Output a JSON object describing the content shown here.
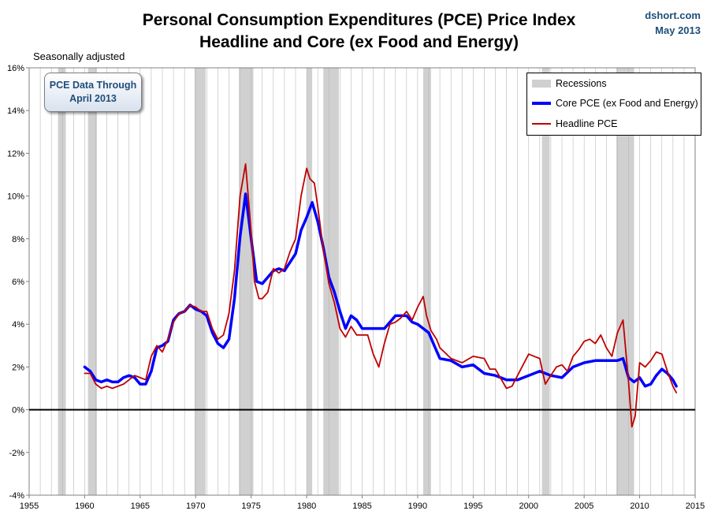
{
  "header": {
    "title_line1": "Personal Consumption Expenditures (PCE) Price Index",
    "title_line2": "Headline and Core (ex Food and Energy)",
    "source": "dshort.com",
    "date": "May 2013"
  },
  "note": "Seasonally adjusted",
  "data_box": {
    "line1": "PCE Data Through",
    "line2": "April 2013"
  },
  "legend": {
    "recessions": "Recessions",
    "core": "Core PCE (ex Food and Energy)",
    "headline": "Headline PCE"
  },
  "colors": {
    "core": "#0000ff",
    "headline": "#c00000",
    "recession": "#d0d0d0",
    "title": "#000000",
    "brand": "#1f4e79"
  },
  "chart_data": {
    "type": "line",
    "title": "Personal Consumption Expenditures (PCE) Price Index - Headline and Core (ex Food and Energy)",
    "xlabel": "",
    "ylabel": "",
    "xlim": [
      1955,
      2015
    ],
    "ylim": [
      -4,
      16
    ],
    "x_ticks": [
      1955,
      1960,
      1965,
      1970,
      1975,
      1980,
      1985,
      1990,
      1995,
      2000,
      2005,
      2010,
      2015
    ],
    "y_ticks": [
      -4,
      -2,
      0,
      2,
      4,
      6,
      8,
      10,
      12,
      14,
      16
    ],
    "y_tick_labels": [
      "-4%",
      "-2%",
      "0%",
      "2%",
      "4%",
      "6%",
      "8%",
      "10%",
      "12%",
      "14%",
      "16%"
    ],
    "grid": "vertical",
    "zero_line": true,
    "recessions": [
      [
        1957.6,
        1958.3
      ],
      [
        1960.3,
        1961.1
      ],
      [
        1969.9,
        1970.9
      ],
      [
        1973.9,
        1975.2
      ],
      [
        1980.0,
        1980.5
      ],
      [
        1981.5,
        1982.9
      ],
      [
        1990.5,
        1991.2
      ],
      [
        2001.2,
        2001.9
      ],
      [
        2007.9,
        2009.5
      ]
    ],
    "series": [
      {
        "name": "Core PCE (ex Food and Energy)",
        "x": [
          1960.0,
          1960.5,
          1961.0,
          1961.5,
          1962.0,
          1962.5,
          1963.0,
          1963.5,
          1964.0,
          1964.5,
          1965.0,
          1965.5,
          1966.0,
          1966.5,
          1967.0,
          1967.5,
          1968.0,
          1968.5,
          1969.0,
          1969.5,
          1970.0,
          1970.5,
          1971.0,
          1971.5,
          1972.0,
          1972.5,
          1973.0,
          1973.5,
          1974.0,
          1974.5,
          1975.0,
          1975.5,
          1976.0,
          1976.5,
          1977.0,
          1977.5,
          1978.0,
          1978.5,
          1979.0,
          1979.5,
          1980.0,
          1980.5,
          1981.0,
          1981.5,
          1982.0,
          1982.5,
          1983.0,
          1983.5,
          1984.0,
          1984.5,
          1985.0,
          1986.0,
          1987.0,
          1988.0,
          1989.0,
          1989.5,
          1990.0,
          1990.5,
          1991.0,
          1991.5,
          1992.0,
          1993.0,
          1994.0,
          1995.0,
          1996.0,
          1997.0,
          1998.0,
          1999.0,
          2000.0,
          2001.0,
          2002.0,
          2003.0,
          2004.0,
          2005.0,
          2006.0,
          2007.0,
          2008.0,
          2008.5,
          2009.0,
          2009.5,
          2010.0,
          2010.5,
          2011.0,
          2011.5,
          2012.0,
          2012.5,
          2013.0,
          2013.3
        ],
        "values": [
          2.0,
          1.8,
          1.4,
          1.3,
          1.4,
          1.3,
          1.3,
          1.5,
          1.6,
          1.5,
          1.2,
          1.2,
          1.8,
          2.9,
          3.0,
          3.2,
          4.2,
          4.5,
          4.6,
          4.9,
          4.7,
          4.6,
          4.4,
          3.6,
          3.1,
          2.9,
          3.3,
          5.2,
          8.1,
          10.1,
          8.0,
          6.0,
          5.9,
          6.2,
          6.5,
          6.6,
          6.5,
          6.9,
          7.3,
          8.4,
          9.0,
          9.7,
          8.8,
          7.6,
          6.2,
          5.5,
          4.6,
          3.8,
          4.4,
          4.2,
          3.8,
          3.8,
          3.8,
          4.4,
          4.4,
          4.1,
          4.0,
          3.8,
          3.6,
          3.0,
          2.4,
          2.3,
          2.0,
          2.1,
          1.7,
          1.6,
          1.4,
          1.4,
          1.6,
          1.8,
          1.6,
          1.5,
          2.0,
          2.2,
          2.3,
          2.3,
          2.3,
          2.4,
          1.5,
          1.3,
          1.5,
          1.1,
          1.2,
          1.6,
          1.9,
          1.7,
          1.4,
          1.1
        ]
      },
      {
        "name": "Headline PCE",
        "x": [
          1960.0,
          1960.5,
          1961.0,
          1961.5,
          1962.0,
          1962.5,
          1963.0,
          1963.5,
          1964.0,
          1964.5,
          1965.0,
          1965.5,
          1966.0,
          1966.5,
          1967.0,
          1967.5,
          1968.0,
          1968.5,
          1969.0,
          1969.5,
          1970.0,
          1970.5,
          1971.0,
          1971.5,
          1972.0,
          1972.5,
          1973.0,
          1973.5,
          1974.0,
          1974.5,
          1975.0,
          1975.3,
          1975.7,
          1976.0,
          1976.5,
          1977.0,
          1977.5,
          1978.0,
          1978.5,
          1979.0,
          1979.5,
          1980.0,
          1980.3,
          1980.7,
          1981.0,
          1981.5,
          1982.0,
          1982.5,
          1983.0,
          1983.5,
          1984.0,
          1984.5,
          1985.0,
          1985.5,
          1986.0,
          1986.5,
          1987.0,
          1987.5,
          1988.0,
          1988.5,
          1989.0,
          1989.5,
          1990.0,
          1990.5,
          1990.8,
          1991.2,
          1991.7,
          1992.0,
          1993.0,
          1994.0,
          1995.0,
          1996.0,
          1996.5,
          1997.0,
          1998.0,
          1998.5,
          1999.0,
          2000.0,
          2000.5,
          2001.0,
          2001.5,
          2002.0,
          2002.5,
          2003.0,
          2003.5,
          2004.0,
          2004.5,
          2005.0,
          2005.5,
          2006.0,
          2006.5,
          2007.0,
          2007.5,
          2008.0,
          2008.5,
          2009.0,
          2009.3,
          2009.6,
          2010.0,
          2010.5,
          2011.0,
          2011.5,
          2012.0,
          2012.5,
          2013.0,
          2013.3
        ],
        "values": [
          1.7,
          1.7,
          1.2,
          1.0,
          1.1,
          1.0,
          1.1,
          1.2,
          1.4,
          1.6,
          1.5,
          1.4,
          2.5,
          3.0,
          2.7,
          3.3,
          4.1,
          4.5,
          4.6,
          4.9,
          4.8,
          4.6,
          4.6,
          3.8,
          3.3,
          3.5,
          4.5,
          6.5,
          10.0,
          11.5,
          8.3,
          6.0,
          5.2,
          5.2,
          5.5,
          6.6,
          6.4,
          6.6,
          7.4,
          8.0,
          10.0,
          11.3,
          10.8,
          10.6,
          9.5,
          7.5,
          5.9,
          5.0,
          3.8,
          3.4,
          3.9,
          3.5,
          3.5,
          3.5,
          2.6,
          2.0,
          3.1,
          4.0,
          4.1,
          4.3,
          4.6,
          4.2,
          4.8,
          5.3,
          4.4,
          3.7,
          3.3,
          2.9,
          2.4,
          2.2,
          2.5,
          2.4,
          1.9,
          1.9,
          1.0,
          1.1,
          1.6,
          2.6,
          2.5,
          2.4,
          1.2,
          1.6,
          2.0,
          2.1,
          1.8,
          2.5,
          2.8,
          3.2,
          3.3,
          3.1,
          3.5,
          2.9,
          2.5,
          3.6,
          4.2,
          1.3,
          -0.8,
          -0.3,
          2.2,
          2.0,
          2.3,
          2.7,
          2.6,
          1.8,
          1.1,
          0.8
        ]
      }
    ]
  }
}
